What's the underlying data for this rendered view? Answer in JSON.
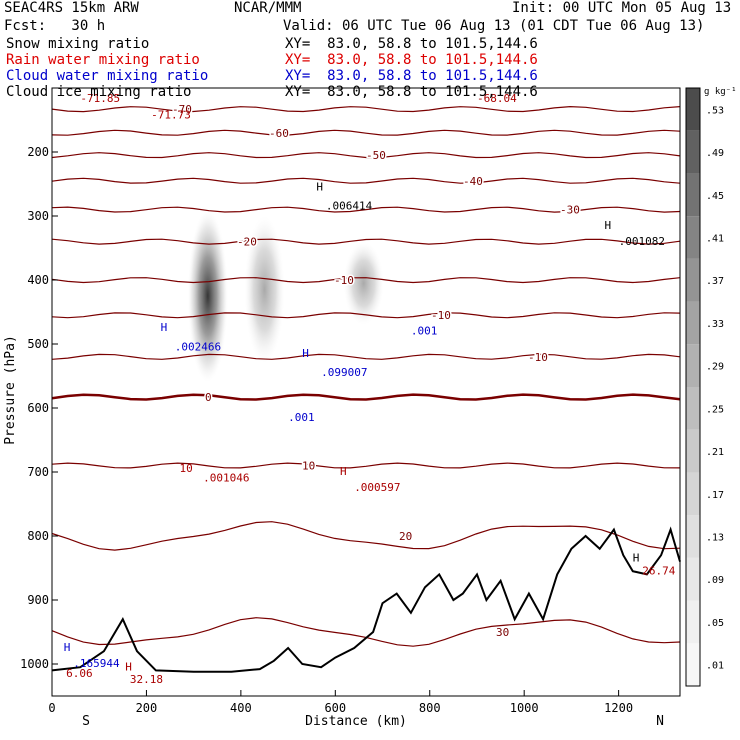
{
  "header": {
    "model": "SEAC4RS 15km ARW",
    "center": "NCAR/MMM",
    "init": "Init: 00 UTC Mon 05 Aug 13",
    "fcst": "Fcst:   30 h",
    "valid": "Valid: 06 UTC Tue 06 Aug 13 (01 CDT Tue 06 Aug 13)",
    "fields": [
      {
        "name": "Snow mixing ratio",
        "xy": "XY=  83.0, 58.8 to 101.5,144.6",
        "color": "#000000"
      },
      {
        "name": "Rain water mixing ratio",
        "xy": "XY=  83.0, 58.8 to 101.5,144.6",
        "color": "#dd0000"
      },
      {
        "name": "Cloud water mixing ratio",
        "xy": "XY=  83.0, 58.8 to 101.5,144.6",
        "color": "#0000cc"
      },
      {
        "name": "Cloud ice mixing ratio",
        "xy": "XY=  83.0, 58.8 to 101.5,144.6",
        "color": "#000000"
      }
    ]
  },
  "chart_data": {
    "type": "heatmap",
    "description_fields": [
      "snow mixing ratio (shaded)",
      "temperature (contours)"
    ],
    "xlabel": "Distance (km)",
    "ylabel": "Pressure (hPa)",
    "xlim": [
      0,
      1330
    ],
    "ylim": [
      1050,
      100
    ],
    "x_ticks": [
      0,
      200,
      400,
      600,
      800,
      1000,
      1200
    ],
    "y_ticks": [
      200,
      300,
      400,
      500,
      600,
      700,
      800,
      900,
      1000
    ],
    "x_end_labels": {
      "left": "S",
      "right": "N"
    },
    "colorbar": {
      "unit": "g kg⁻¹",
      "levels": [
        ".01",
        ".05",
        ".09",
        ".13",
        ".17",
        ".21",
        ".25",
        ".29",
        ".33",
        ".37",
        ".41",
        ".45",
        ".49",
        ".53"
      ],
      "colors": [
        "#f7f7f7",
        "#f0f0f0",
        "#e8e8e8",
        "#dfdfdf",
        "#d5d5d5",
        "#cacaca",
        "#bebebe",
        "#b1b1b1",
        "#a3a3a3",
        "#949494",
        "#848484",
        "#737373",
        "#616161",
        "#4c4c4c"
      ]
    },
    "snow_cores": [
      {
        "x": 330,
        "p_top": 290,
        "p_bottom": 560,
        "max": 0.53
      },
      {
        "x": 450,
        "p_top": 300,
        "p_bottom": 530,
        "max": 0.25
      },
      {
        "x": 660,
        "p_top": 340,
        "p_bottom": 470,
        "max": 0.25
      }
    ],
    "temperature_contours": [
      {
        "label": "-70",
        "p": 133
      },
      {
        "label": "-60",
        "p": 170
      },
      {
        "label": "-50",
        "p": 205
      },
      {
        "label": "-40",
        "p": 245
      },
      {
        "label": "-30",
        "p": 290
      },
      {
        "label": "-20",
        "p": 340
      },
      {
        "label": "-10",
        "p": 400
      },
      {
        "label": "-10",
        "p": 455
      },
      {
        "label": "-10",
        "p": 520
      },
      {
        "label": "0",
        "p": 583
      },
      {
        "label": "10",
        "p": 690
      },
      {
        "label": "20",
        "p": 800
      },
      {
        "label": "30",
        "p": 950
      }
    ],
    "annotations": [
      {
        "text": "-71.85",
        "x": 60,
        "p": 122,
        "color": "#aa0000"
      },
      {
        "text": "-71.73",
        "x": 210,
        "p": 148,
        "color": "#aa0000"
      },
      {
        "text": "-68.04",
        "x": 900,
        "p": 122,
        "color": "#aa0000"
      },
      {
        "text": "H",
        "x": 560,
        "p": 260,
        "color": "#000000"
      },
      {
        "text": ".006414",
        "x": 580,
        "p": 290,
        "color": "#000000"
      },
      {
        "text": "H",
        "x": 1170,
        "p": 320,
        "color": "#000000"
      },
      {
        "text": ".001082",
        "x": 1200,
        "p": 345,
        "color": "#000000"
      },
      {
        "text": "H",
        "x": 230,
        "p": 480,
        "color": "#0000cc"
      },
      {
        "text": ".002466",
        "x": 260,
        "p": 510,
        "color": "#0000cc"
      },
      {
        "text": "H",
        "x": 530,
        "p": 520,
        "color": "#0000cc"
      },
      {
        "text": ".099007",
        "x": 570,
        "p": 550,
        "color": "#0000cc"
      },
      {
        "text": ".001",
        "x": 500,
        "p": 620,
        "color": "#0000cc"
      },
      {
        "text": ".001",
        "x": 760,
        "p": 485,
        "color": "#0000cc"
      },
      {
        "text": "10",
        "x": 270,
        "p": 700,
        "color": "#aa0000"
      },
      {
        "text": ".001046",
        "x": 320,
        "p": 715,
        "color": "#aa0000"
      },
      {
        "text": "H",
        "x": 610,
        "p": 705,
        "color": "#aa0000"
      },
      {
        "text": ".000597",
        "x": 640,
        "p": 730,
        "color": "#aa0000"
      },
      {
        "text": "H",
        "x": 1230,
        "p": 840,
        "color": "#000000"
      },
      {
        "text": "26.74",
        "x": 1250,
        "p": 860,
        "color": "#aa0000"
      },
      {
        "text": "H",
        "x": 25,
        "p": 980,
        "color": "#0000cc"
      },
      {
        "text": ".165944",
        "x": 45,
        "p": 1005,
        "color": "#0000cc"
      },
      {
        "text": "6.06",
        "x": 30,
        "p": 1020,
        "color": "#aa0000"
      },
      {
        "text": "H",
        "x": 155,
        "p": 1010,
        "color": "#aa0000"
      },
      {
        "text": "32.18",
        "x": 165,
        "p": 1030,
        "color": "#aa0000"
      }
    ],
    "terrain": [
      [
        0,
        1010
      ],
      [
        60,
        1005
      ],
      [
        110,
        980
      ],
      [
        150,
        930
      ],
      [
        180,
        980
      ],
      [
        220,
        1010
      ],
      [
        300,
        1012
      ],
      [
        380,
        1012
      ],
      [
        440,
        1008
      ],
      [
        470,
        995
      ],
      [
        500,
        975
      ],
      [
        530,
        1000
      ],
      [
        570,
        1005
      ],
      [
        600,
        990
      ],
      [
        640,
        975
      ],
      [
        680,
        950
      ],
      [
        700,
        905
      ],
      [
        730,
        890
      ],
      [
        760,
        920
      ],
      [
        790,
        880
      ],
      [
        820,
        860
      ],
      [
        850,
        900
      ],
      [
        870,
        890
      ],
      [
        900,
        860
      ],
      [
        920,
        900
      ],
      [
        950,
        870
      ],
      [
        980,
        930
      ],
      [
        1010,
        890
      ],
      [
        1040,
        930
      ],
      [
        1070,
        860
      ],
      [
        1100,
        820
      ],
      [
        1130,
        800
      ],
      [
        1160,
        820
      ],
      [
        1190,
        790
      ],
      [
        1210,
        830
      ],
      [
        1230,
        855
      ],
      [
        1260,
        860
      ],
      [
        1290,
        830
      ],
      [
        1310,
        790
      ],
      [
        1330,
        840
      ]
    ]
  }
}
